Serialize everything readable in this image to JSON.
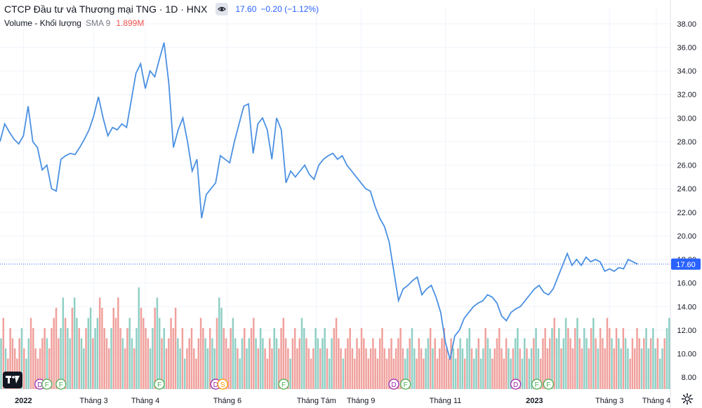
{
  "header": {
    "title": "CTCP Đầu tư và Thương mại TNG · 1D · HNX",
    "last_price": "17.60",
    "change": "−0.20 (−1.12%)",
    "volume_label": "Volume - Khối lượng",
    "sma_label": "SMA 9",
    "volume_value": "1.899M"
  },
  "colors": {
    "line": "#4a90e2",
    "vol_up": "#8fcfc4",
    "vol_down": "#f0a09c",
    "grid": "#f0f3fa",
    "axis_text": "#131722",
    "label_bg": "#2962ff",
    "event_f": "#4caf50",
    "event_d": "#9c27b0",
    "event_s": "#ff9800"
  },
  "chart_data": {
    "type": "line",
    "title": "CTCP Đầu tư và Thương mại TNG · 1D · HNX",
    "current_price": 17.6,
    "ylim": [
      7.0,
      39.3
    ],
    "y_ticks": [
      8,
      10,
      12,
      14,
      16,
      18,
      20,
      22,
      24,
      26,
      28,
      30,
      32,
      34,
      36,
      38
    ],
    "y_tick_labels": [
      "8.00",
      "10.00",
      "12.00",
      "14.00",
      "16.00",
      "18.00",
      "20.00",
      "22.00",
      "24.00",
      "26.00",
      "28.00",
      "30.00",
      "32.00",
      "34.00",
      "36.00",
      "38.00"
    ],
    "x_range": [
      0,
      286
    ],
    "x_ticks": [
      {
        "x": 10,
        "label": "2022",
        "bold": true
      },
      {
        "x": 40,
        "label": "Tháng 3",
        "bold": false
      },
      {
        "x": 62,
        "label": "Tháng 4",
        "bold": false
      },
      {
        "x": 97,
        "label": "Tháng 6",
        "bold": false
      },
      {
        "x": 135,
        "label": "Tháng Tám",
        "bold": false
      },
      {
        "x": 154,
        "label": "Tháng 9",
        "bold": false
      },
      {
        "x": 190,
        "label": "Tháng 11",
        "bold": false
      },
      {
        "x": 228,
        "label": "2023",
        "bold": true
      },
      {
        "x": 260,
        "label": "Tháng 3",
        "bold": false
      },
      {
        "x": 280,
        "label": "Tháng 4",
        "bold": false
      }
    ],
    "price_points": [
      [
        0,
        28.0
      ],
      [
        2,
        29.5
      ],
      [
        4,
        28.8
      ],
      [
        6,
        28.2
      ],
      [
        8,
        27.8
      ],
      [
        10,
        28.5
      ],
      [
        12,
        31.0
      ],
      [
        14,
        28.0
      ],
      [
        16,
        27.5
      ],
      [
        18,
        25.6
      ],
      [
        20,
        26.0
      ],
      [
        22,
        24.0
      ],
      [
        24,
        23.8
      ],
      [
        26,
        26.5
      ],
      [
        28,
        26.8
      ],
      [
        30,
        27.0
      ],
      [
        32,
        26.9
      ],
      [
        34,
        27.5
      ],
      [
        36,
        28.2
      ],
      [
        38,
        29.0
      ],
      [
        40,
        30.2
      ],
      [
        42,
        31.8
      ],
      [
        44,
        30.0
      ],
      [
        46,
        28.5
      ],
      [
        48,
        29.2
      ],
      [
        50,
        29.0
      ],
      [
        52,
        29.5
      ],
      [
        54,
        29.2
      ],
      [
        56,
        31.5
      ],
      [
        58,
        33.8
      ],
      [
        60,
        34.6
      ],
      [
        62,
        32.5
      ],
      [
        64,
        34.0
      ],
      [
        66,
        33.5
      ],
      [
        68,
        35.0
      ],
      [
        70,
        36.4
      ],
      [
        72,
        33.0
      ],
      [
        74,
        27.5
      ],
      [
        76,
        29.0
      ],
      [
        78,
        30.0
      ],
      [
        80,
        28.0
      ],
      [
        82,
        25.5
      ],
      [
        84,
        26.5
      ],
      [
        86,
        21.5
      ],
      [
        88,
        23.5
      ],
      [
        90,
        24.0
      ],
      [
        92,
        24.5
      ],
      [
        94,
        26.8
      ],
      [
        96,
        26.5
      ],
      [
        98,
        26.2
      ],
      [
        100,
        28.0
      ],
      [
        102,
        29.5
      ],
      [
        104,
        31.0
      ],
      [
        106,
        31.2
      ],
      [
        108,
        27.0
      ],
      [
        110,
        29.5
      ],
      [
        112,
        30.0
      ],
      [
        114,
        29.0
      ],
      [
        116,
        26.5
      ],
      [
        118,
        30.0
      ],
      [
        120,
        29.0
      ],
      [
        122,
        24.5
      ],
      [
        124,
        25.5
      ],
      [
        126,
        25.0
      ],
      [
        128,
        25.5
      ],
      [
        130,
        26.0
      ],
      [
        132,
        25.2
      ],
      [
        134,
        24.8
      ],
      [
        136,
        26.0
      ],
      [
        138,
        26.5
      ],
      [
        140,
        26.8
      ],
      [
        142,
        27.0
      ],
      [
        144,
        26.5
      ],
      [
        146,
        26.8
      ],
      [
        148,
        26.0
      ],
      [
        150,
        25.5
      ],
      [
        152,
        25.0
      ],
      [
        154,
        24.5
      ],
      [
        156,
        24.0
      ],
      [
        158,
        23.8
      ],
      [
        160,
        22.5
      ],
      [
        162,
        21.5
      ],
      [
        164,
        20.8
      ],
      [
        166,
        19.5
      ],
      [
        168,
        17.0
      ],
      [
        170,
        14.5
      ],
      [
        172,
        15.5
      ],
      [
        174,
        15.8
      ],
      [
        176,
        16.2
      ],
      [
        178,
        16.5
      ],
      [
        180,
        15.0
      ],
      [
        182,
        15.5
      ],
      [
        184,
        15.8
      ],
      [
        186,
        14.8
      ],
      [
        188,
        13.5
      ],
      [
        190,
        11.0
      ],
      [
        192,
        9.5
      ],
      [
        194,
        11.5
      ],
      [
        196,
        12.0
      ],
      [
        198,
        13.0
      ],
      [
        200,
        13.5
      ],
      [
        202,
        14.0
      ],
      [
        204,
        14.3
      ],
      [
        206,
        14.5
      ],
      [
        208,
        15.0
      ],
      [
        210,
        14.8
      ],
      [
        212,
        14.3
      ],
      [
        214,
        13.2
      ],
      [
        216,
        12.8
      ],
      [
        218,
        13.5
      ],
      [
        220,
        13.8
      ],
      [
        222,
        14.0
      ],
      [
        224,
        14.5
      ],
      [
        226,
        15.0
      ],
      [
        228,
        15.5
      ],
      [
        230,
        15.8
      ],
      [
        232,
        15.2
      ],
      [
        234,
        15.0
      ],
      [
        236,
        15.5
      ],
      [
        238,
        16.5
      ],
      [
        240,
        17.5
      ],
      [
        242,
        18.5
      ],
      [
        244,
        17.5
      ],
      [
        246,
        18.0
      ],
      [
        248,
        17.5
      ],
      [
        250,
        18.2
      ],
      [
        252,
        17.8
      ],
      [
        254,
        18.0
      ],
      [
        256,
        17.8
      ],
      [
        258,
        17.0
      ],
      [
        260,
        17.2
      ],
      [
        262,
        17.0
      ],
      [
        264,
        17.3
      ],
      [
        266,
        17.2
      ],
      [
        268,
        18.0
      ],
      [
        270,
        17.8
      ],
      [
        272,
        17.6
      ]
    ],
    "volume_ylim": [
      0,
      10.0
    ],
    "volume_bars_note": "",
    "volume_heights": [
      5,
      7,
      4,
      3,
      6,
      5,
      4,
      3,
      5,
      6,
      4,
      3,
      5,
      7,
      6,
      4,
      3,
      4,
      5,
      6,
      5,
      4,
      6,
      7,
      8,
      5,
      6,
      9,
      7,
      6,
      5,
      8,
      9,
      7,
      6,
      5,
      4,
      6,
      7,
      8,
      5,
      6,
      7,
      9,
      8,
      6,
      5,
      4,
      6,
      8,
      7,
      9,
      6,
      5,
      4,
      6,
      7,
      5,
      4,
      6,
      10,
      8,
      7,
      6,
      5,
      4,
      6,
      8,
      9,
      7,
      5,
      6,
      4,
      5,
      7,
      6,
      8,
      5,
      4,
      6,
      3,
      4,
      5,
      6,
      4,
      3,
      5,
      7,
      6,
      5,
      4,
      6,
      5,
      4,
      7,
      9,
      8,
      6,
      5,
      4,
      6,
      7,
      5,
      4,
      3,
      5,
      6,
      4,
      5,
      6,
      7,
      5,
      4,
      6,
      5,
      4,
      3,
      5,
      4,
      6,
      5,
      4,
      6,
      7,
      5,
      4,
      3,
      5,
      6,
      4,
      5,
      7,
      6,
      5,
      4,
      3,
      4,
      6,
      5,
      4,
      5,
      6,
      4,
      3,
      5,
      6,
      7,
      5,
      4,
      3,
      4,
      5,
      6,
      4,
      3,
      5,
      4,
      6,
      5,
      4,
      3,
      4,
      5,
      4,
      3,
      5,
      6,
      4,
      3,
      4,
      5,
      3,
      4,
      5,
      6,
      4,
      3,
      4,
      5,
      6,
      4,
      3,
      5,
      4,
      3,
      4,
      5,
      6,
      4,
      5,
      3,
      4,
      5,
      6,
      4,
      3,
      5,
      4,
      3,
      4,
      5,
      4,
      3,
      5,
      6,
      4,
      3,
      4,
      5,
      3,
      4,
      6,
      5,
      4,
      3,
      4,
      5,
      6,
      4,
      3,
      5,
      4,
      3,
      4,
      5,
      6,
      4,
      3,
      5,
      4,
      3,
      4,
      5,
      6,
      4,
      3,
      5,
      6,
      4,
      5,
      6,
      7,
      5,
      6,
      4,
      5,
      7,
      6,
      5,
      4,
      6,
      7,
      5,
      4,
      6,
      5,
      4,
      6,
      7,
      5,
      4,
      6,
      5,
      4,
      7,
      6,
      5,
      4,
      6,
      5,
      4,
      6,
      5,
      4,
      3,
      5,
      4,
      6,
      5,
      4,
      5,
      6,
      4,
      5,
      6,
      4,
      5,
      3,
      4,
      5,
      6,
      7
    ],
    "events": [
      {
        "x": 17,
        "label": "D"
      },
      {
        "x": 20,
        "label": "F"
      },
      {
        "x": 26,
        "label": "F"
      },
      {
        "x": 68,
        "label": "F"
      },
      {
        "x": 92,
        "label": "D"
      },
      {
        "x": 95,
        "label": "S"
      },
      {
        "x": 121,
        "label": "F"
      },
      {
        "x": 168,
        "label": "D"
      },
      {
        "x": 173,
        "label": "F"
      },
      {
        "x": 220,
        "label": "D"
      },
      {
        "x": 229,
        "label": "F"
      },
      {
        "x": 234,
        "label": "F"
      }
    ]
  }
}
